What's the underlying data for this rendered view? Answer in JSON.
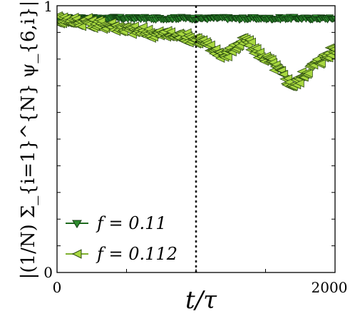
{
  "chart_data": {
    "type": "scatter",
    "xlabel": "t/τ",
    "ylabel": "|(1/N) Σ_{i=1}^{N} ψ_{6,i}|",
    "xlim": [
      0,
      2000
    ],
    "ylim": [
      0,
      1
    ],
    "x_tick_labels": [
      "0",
      "2000"
    ],
    "y_tick_labels": [
      "0",
      "1"
    ],
    "vertical_reference_line_x": 1000,
    "legend_position": "lower-left",
    "grid": false,
    "series": [
      {
        "name": "f = 0.11",
        "color": "#2e8b2e",
        "edge_color": "#0f3a0f",
        "marker": "triangle-down",
        "x": [
          0,
          100,
          200,
          300,
          400,
          500,
          600,
          700,
          800,
          900,
          1000,
          1100,
          1200,
          1300,
          1400,
          1500,
          1600,
          1700,
          1800,
          1900,
          2000
        ],
        "y": [
          0.955,
          0.952,
          0.953,
          0.951,
          0.954,
          0.952,
          0.953,
          0.951,
          0.952,
          0.953,
          0.951,
          0.952,
          0.953,
          0.951,
          0.952,
          0.951,
          0.952,
          0.953,
          0.951,
          0.952,
          0.951
        ]
      },
      {
        "name": "f = 0.112",
        "color": "#a8d840",
        "edge_color": "#2a4a10",
        "marker": "triangle-left",
        "x": [
          0,
          100,
          200,
          300,
          400,
          500,
          600,
          700,
          800,
          900,
          1000,
          1050,
          1100,
          1150,
          1200,
          1250,
          1300,
          1350,
          1400,
          1450,
          1500,
          1550,
          1600,
          1650,
          1700,
          1750,
          1800,
          1850,
          1900,
          1950,
          2000
        ],
        "y": [
          0.95,
          0.945,
          0.94,
          0.93,
          0.925,
          0.91,
          0.905,
          0.895,
          0.89,
          0.885,
          0.875,
          0.86,
          0.84,
          0.83,
          0.81,
          0.835,
          0.85,
          0.87,
          0.845,
          0.82,
          0.8,
          0.78,
          0.75,
          0.72,
          0.7,
          0.73,
          0.76,
          0.78,
          0.8,
          0.82,
          0.84
        ]
      }
    ]
  }
}
